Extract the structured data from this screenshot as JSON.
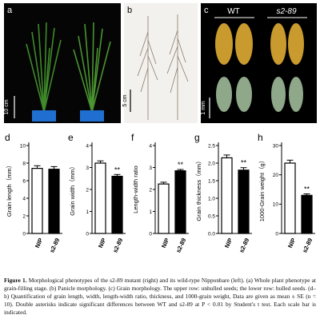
{
  "panels": [
    {
      "letter": "a",
      "scale_bar": "10 cm"
    },
    {
      "letter": "b",
      "scale_bar": "5 cm"
    },
    {
      "letter": "c",
      "labels": [
        "WT",
        "s2-89"
      ],
      "scale_bar": "1 mm"
    }
  ],
  "chart_data": [
    {
      "type": "bar",
      "letter": "d",
      "y_label": "Grain length（mm）",
      "categories": [
        "NIP",
        "s2-89"
      ],
      "values": [
        7.4,
        7.3
      ],
      "errors": [
        0.3,
        0.3
      ],
      "colors": [
        "#ffffff",
        "#000000"
      ],
      "significance": [
        null,
        null
      ],
      "ylim": [
        0,
        10
      ],
      "yticks": [
        0,
        2,
        4,
        6,
        8,
        10
      ]
    },
    {
      "type": "bar",
      "letter": "e",
      "y_label": "Grain width（mm）",
      "categories": [
        "NIP",
        "s2-89"
      ],
      "values": [
        3.2,
        2.6
      ],
      "errors": [
        0.1,
        0.08
      ],
      "colors": [
        "#ffffff",
        "#000000"
      ],
      "significance": [
        null,
        "**"
      ],
      "ylim": [
        0,
        4
      ],
      "yticks": [
        0,
        1,
        2,
        3,
        4
      ]
    },
    {
      "type": "bar",
      "letter": "f",
      "y_label": "Length-width ratio",
      "categories": [
        "NIP",
        "s2-89"
      ],
      "values": [
        2.25,
        2.85
      ],
      "errors": [
        0.08,
        0.06
      ],
      "colors": [
        "#ffffff",
        "#000000"
      ],
      "significance": [
        null,
        "**"
      ],
      "ylim": [
        0,
        4
      ],
      "yticks": [
        0,
        1,
        2,
        3,
        4
      ]
    },
    {
      "type": "bar",
      "letter": "g",
      "y_label": "Grain thickness（mm）",
      "categories": [
        "NIP",
        "s2-89"
      ],
      "values": [
        2.15,
        1.8
      ],
      "errors": [
        0.08,
        0.07
      ],
      "colors": [
        "#ffffff",
        "#000000"
      ],
      "significance": [
        null,
        "**"
      ],
      "ylim": [
        0,
        2.5
      ],
      "yticks": [
        {
          "value": 0,
          "label": "0.0"
        },
        {
          "value": 0.5,
          "label": "0.5"
        },
        {
          "value": 1,
          "label": "1.0"
        },
        {
          "value": 1.5,
          "label": "1.5"
        },
        {
          "value": 2,
          "label": "2.0"
        },
        {
          "value": 2.5,
          "label": "2.5"
        }
      ]
    },
    {
      "type": "bar",
      "letter": "h",
      "y_label": "1000-Grain weight（g）",
      "categories": [
        "NIP",
        "s2-89"
      ],
      "values": [
        24,
        13
      ],
      "errors": [
        1,
        0.5
      ],
      "colors": [
        "#ffffff",
        "#000000"
      ],
      "significance": [
        null,
        "**"
      ],
      "ylim": [
        0,
        30
      ],
      "yticks": [
        0,
        10,
        20,
        30
      ]
    }
  ],
  "caption": {
    "label": "Figure 1.",
    "text": "Morphological phenotypes of the s2-89 mutant (right) and its wild-type Nipponbare (left). (a) Whole plant phenotype at grain-filling stage. (b) Panicle morphology. (c) Grain morphology. The upper row: unhulled seeds; the lower row: hulled seeds. (d–h) Quantification of grain length, width, length-width ratio, thickness, and 1000-grain weight, Data are given as mean ± SE (n = 10). Double asterisks indicate significant differences between WT and s2-89 at P < 0.01 by Student's t test. Each scale bar is indicated."
  }
}
